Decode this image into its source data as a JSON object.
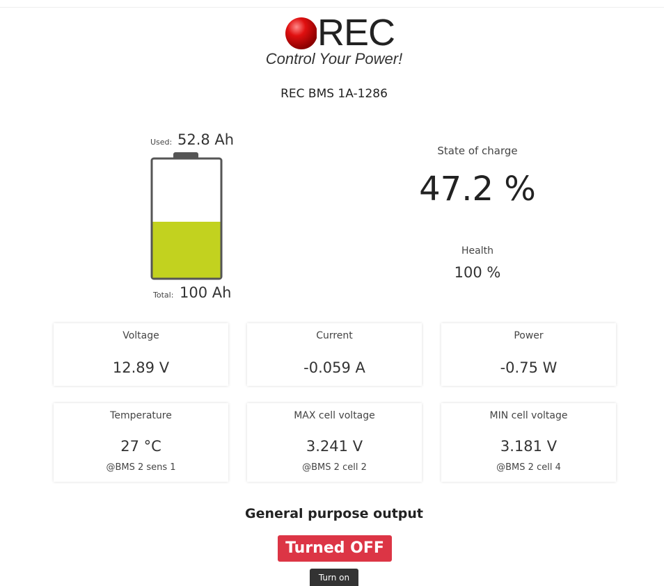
{
  "logo": {
    "brand": "REC",
    "tagline": "Control Your Power!"
  },
  "device": "REC BMS 1A-1286",
  "battery": {
    "used_label": "Used:",
    "used": "52.8 Ah",
    "total_label": "Total:",
    "total": "100 Ah"
  },
  "state_of_charge": {
    "label": "State of charge",
    "value": "47.2 %"
  },
  "health": {
    "label": "Health",
    "value": "100 %"
  },
  "cards": [
    {
      "label": "Voltage",
      "value": "12.89 V"
    },
    {
      "label": "Current",
      "value": "-0.059 A"
    },
    {
      "label": "Power",
      "value": "-0.75 W"
    },
    {
      "label": "Temperature",
      "value": "27 °C",
      "detail": "@BMS 2 sens 1"
    },
    {
      "label": "MAX cell voltage",
      "value": "3.241 V",
      "detail": "@BMS 2 cell 2"
    },
    {
      "label": "MIN cell voltage",
      "value": "3.181 V",
      "detail": "@BMS 2 cell 4"
    }
  ],
  "output": {
    "title": "General purpose output",
    "status": "Turned OFF",
    "button": "Turn on"
  }
}
